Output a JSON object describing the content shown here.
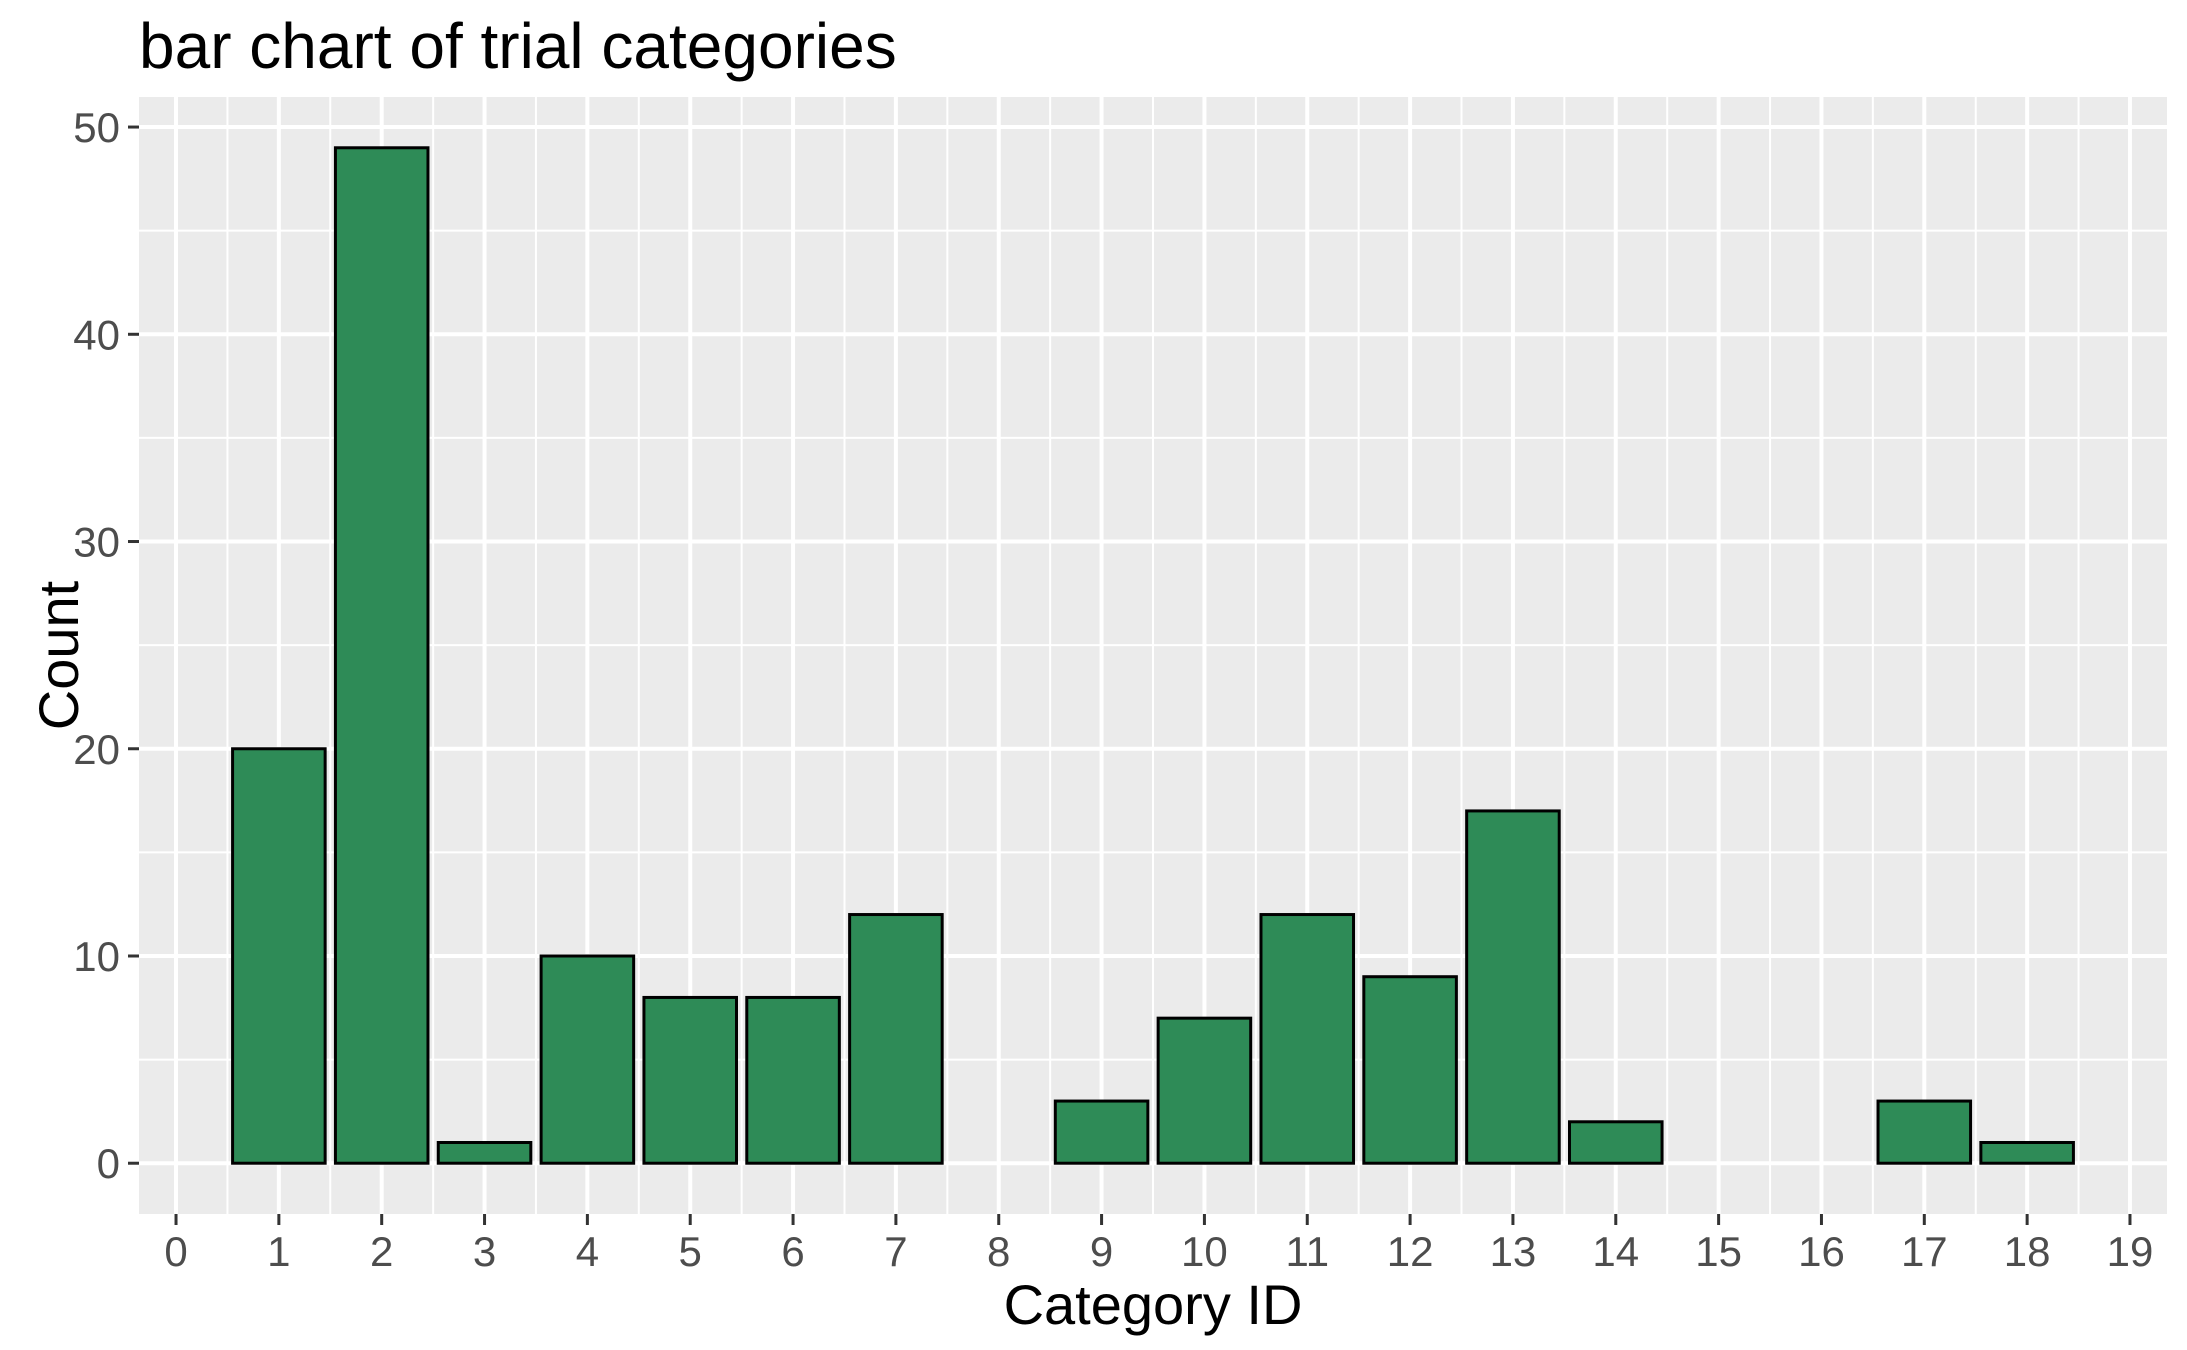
{
  "chart_data": {
    "type": "bar",
    "title": "bar chart of trial categories",
    "xlabel": "Category ID",
    "ylabel": "Count",
    "x": [
      1,
      2,
      3,
      4,
      5,
      6,
      7,
      8,
      9,
      10,
      11,
      12,
      13,
      14,
      15,
      16,
      17,
      18
    ],
    "values": [
      20,
      49,
      1,
      10,
      8,
      8,
      12,
      0,
      3,
      7,
      12,
      9,
      17,
      2,
      0,
      0,
      3,
      1
    ],
    "bar_width": 0.9,
    "x_ticks": [
      0,
      1,
      2,
      3,
      4,
      5,
      6,
      7,
      8,
      9,
      10,
      11,
      12,
      13,
      14,
      15,
      16,
      17,
      18,
      19
    ],
    "y_ticks": [
      0,
      10,
      20,
      30,
      40,
      50
    ],
    "y_minor_ticks": [
      5,
      15,
      25,
      35,
      45
    ],
    "xlim": [
      -0.36,
      19.36
    ],
    "ylim": [
      -2.45,
      51.45
    ],
    "grid": "major-and-minor",
    "legend": "none",
    "style": {
      "bar_fill": "#2E8B57",
      "bar_stroke": "#000000",
      "panel_bg": "#EBEBEB",
      "grid_color": "#FFFFFF",
      "tick_mark_color": "#333333",
      "tick_label_color": "#4D4D4D",
      "title_color": "#000000",
      "axis_title_color": "#000000",
      "plot_bg": "#FFFFFF"
    }
  }
}
